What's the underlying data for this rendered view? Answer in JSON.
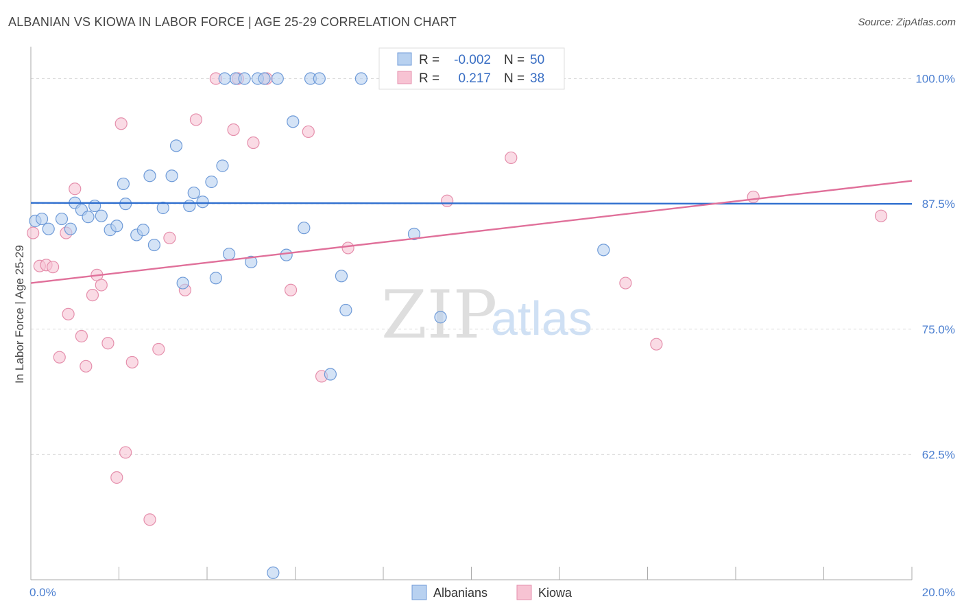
{
  "title": "ALBANIAN VS KIOWA IN LABOR FORCE | AGE 25-29 CORRELATION CHART",
  "source": "Source: ZipAtlas.com",
  "colors": {
    "albanians_fill": "#b8d1f0",
    "albanians_stroke": "#6f9bd8",
    "albanians_line": "#2f6fcf",
    "kiowa_fill": "#f7c3d3",
    "kiowa_stroke": "#e58fac",
    "kiowa_line": "#e0709a",
    "tick_text": "#4a7ed0"
  },
  "legend": {
    "rows": [
      {
        "r_label": "R =",
        "r_value": "-0.002",
        "n_label": "N =",
        "n_value": "50"
      },
      {
        "r_label": "R =",
        "r_value": "0.217",
        "n_label": "N =",
        "n_value": "38"
      }
    ]
  },
  "watermark": {
    "zip": "ZIP",
    "atlas": "atlas"
  },
  "chart_data": {
    "type": "scatter",
    "title": "ALBANIAN VS KIOWA IN LABOR FORCE | AGE 25-29 CORRELATION CHART",
    "xlabel": "",
    "ylabel": "In Labor Force | Age 25-29",
    "xlim": [
      0,
      20
    ],
    "ylim": [
      50,
      102.5
    ],
    "x_tick_labels": [
      {
        "value": 0,
        "label": "0.0%"
      },
      {
        "value": 20,
        "label": "20.0%"
      }
    ],
    "y_tick_labels": [
      {
        "value": 100,
        "label": "100.0%"
      },
      {
        "value": 87.5,
        "label": "87.5%"
      },
      {
        "value": 75,
        "label": "75.0%"
      },
      {
        "value": 62.5,
        "label": "62.5%"
      }
    ],
    "grid": true,
    "legend_position": "top-center",
    "series": [
      {
        "name": "Albanians",
        "color": "#6f9bd8",
        "trend": {
          "x": [
            0,
            20
          ],
          "y": [
            87.6,
            87.5
          ]
        },
        "points": [
          [
            0.1,
            85.8
          ],
          [
            0.25,
            86.0
          ],
          [
            0.4,
            85.0
          ],
          [
            0.7,
            86.0
          ],
          [
            0.9,
            85.0
          ],
          [
            1.0,
            87.6
          ],
          [
            1.15,
            86.9
          ],
          [
            1.3,
            86.2
          ],
          [
            1.45,
            87.3
          ],
          [
            1.6,
            86.3
          ],
          [
            1.8,
            84.9
          ],
          [
            1.95,
            85.3
          ],
          [
            2.1,
            89.5
          ],
          [
            2.15,
            87.5
          ],
          [
            2.4,
            84.4
          ],
          [
            2.55,
            84.9
          ],
          [
            2.7,
            90.3
          ],
          [
            2.8,
            83.4
          ],
          [
            3.0,
            87.1
          ],
          [
            3.2,
            90.3
          ],
          [
            3.3,
            93.3
          ],
          [
            3.45,
            79.6
          ],
          [
            3.6,
            87.3
          ],
          [
            3.7,
            88.6
          ],
          [
            3.9,
            87.7
          ],
          [
            4.1,
            89.7
          ],
          [
            4.2,
            80.1
          ],
          [
            4.35,
            91.3
          ],
          [
            4.5,
            82.5
          ],
          [
            4.65,
            100.0
          ],
          [
            4.85,
            100.0
          ],
          [
            5.0,
            81.7
          ],
          [
            5.15,
            100.0
          ],
          [
            5.3,
            100.0
          ],
          [
            5.5,
            50.7
          ],
          [
            5.6,
            100.0
          ],
          [
            5.8,
            82.4
          ],
          [
            5.95,
            95.7
          ],
          [
            6.2,
            85.1
          ],
          [
            6.35,
            100.0
          ],
          [
            6.55,
            100.0
          ],
          [
            6.8,
            70.5
          ],
          [
            7.05,
            80.3
          ],
          [
            7.15,
            76.9
          ],
          [
            7.5,
            100.0
          ],
          [
            8.25,
            100.0
          ],
          [
            8.7,
            84.5
          ],
          [
            9.3,
            76.2
          ],
          [
            13.0,
            82.9
          ],
          [
            4.4,
            100.0
          ]
        ]
      },
      {
        "name": "Kiowa",
        "color": "#e58fac",
        "trend": {
          "x": [
            0,
            20
          ],
          "y": [
            79.6,
            89.8
          ]
        },
        "points": [
          [
            0.05,
            84.6
          ],
          [
            0.2,
            81.3
          ],
          [
            0.35,
            81.4
          ],
          [
            0.5,
            81.2
          ],
          [
            0.65,
            72.2
          ],
          [
            0.8,
            84.6
          ],
          [
            0.85,
            76.5
          ],
          [
            1.0,
            89.0
          ],
          [
            1.15,
            74.3
          ],
          [
            1.25,
            71.3
          ],
          [
            1.4,
            78.4
          ],
          [
            1.5,
            80.4
          ],
          [
            1.6,
            79.4
          ],
          [
            1.75,
            73.6
          ],
          [
            1.95,
            60.2
          ],
          [
            2.05,
            95.5
          ],
          [
            2.15,
            62.7
          ],
          [
            2.3,
            71.7
          ],
          [
            2.7,
            56.0
          ],
          [
            2.9,
            73.0
          ],
          [
            3.15,
            84.1
          ],
          [
            3.5,
            78.9
          ],
          [
            3.75,
            95.9
          ],
          [
            4.2,
            100.0
          ],
          [
            4.6,
            94.9
          ],
          [
            4.7,
            100.0
          ],
          [
            5.05,
            93.6
          ],
          [
            5.35,
            100.0
          ],
          [
            5.9,
            78.9
          ],
          [
            6.3,
            94.7
          ],
          [
            6.6,
            70.3
          ],
          [
            7.2,
            83.1
          ],
          [
            9.45,
            87.8
          ],
          [
            10.9,
            92.1
          ],
          [
            13.5,
            79.6
          ],
          [
            14.2,
            73.5
          ],
          [
            16.4,
            88.2
          ],
          [
            19.3,
            86.3
          ]
        ]
      }
    ]
  },
  "bottom_legend": {
    "items": [
      {
        "label": "Albanians"
      },
      {
        "label": "Kiowa"
      }
    ]
  }
}
